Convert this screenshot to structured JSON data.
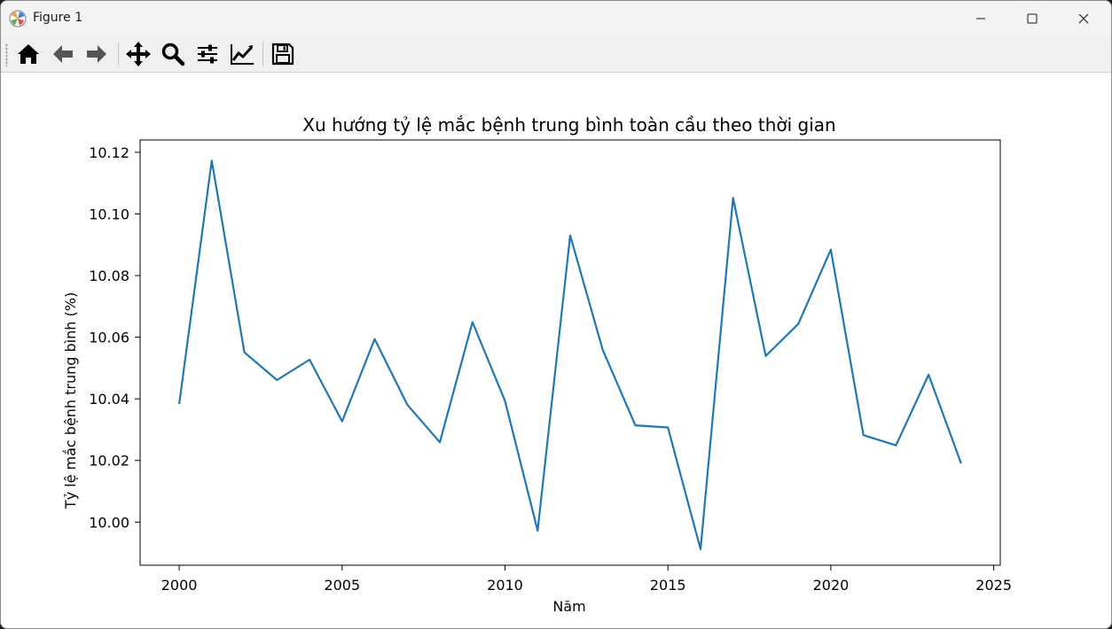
{
  "window": {
    "title": "Figure 1",
    "app_icon": "matplotlib-icon",
    "controls": [
      "minimize-icon",
      "maximize-icon",
      "close-icon"
    ]
  },
  "toolbar": {
    "buttons": [
      {
        "name": "home",
        "icon": "home-icon"
      },
      {
        "name": "back",
        "icon": "arrow-left-icon"
      },
      {
        "name": "forward",
        "icon": "arrow-right-icon"
      },
      {
        "name": "pan",
        "icon": "move-icon"
      },
      {
        "name": "zoom",
        "icon": "magnifier-icon"
      },
      {
        "name": "configure-subplots",
        "icon": "sliders-icon"
      },
      {
        "name": "edit-axis",
        "icon": "line-chart-icon"
      },
      {
        "name": "save",
        "icon": "floppy-disk-icon"
      }
    ]
  },
  "chart_data": {
    "type": "line",
    "title": "Xu hướng tỷ lệ mắc bệnh trung bình toàn cầu theo thời gian",
    "xlabel": "Năm",
    "ylabel": "Tỷ lệ mắc bệnh trung bình (%)",
    "xlim": [
      1998.8,
      2025.2
    ],
    "ylim": [
      9.986,
      10.124
    ],
    "xticks": [
      2000,
      2005,
      2010,
      2015,
      2020,
      2025
    ],
    "yticks": [
      10.0,
      10.02,
      10.04,
      10.06,
      10.08,
      10.1,
      10.12
    ],
    "ytick_labels": [
      "10.00",
      "10.02",
      "10.04",
      "10.06",
      "10.08",
      "10.10",
      "10.12"
    ],
    "grid": false,
    "line_color": "#1f77b4",
    "series": [
      {
        "x": [
          2000,
          2001,
          2002,
          2003,
          2004,
          2005,
          2006,
          2007,
          2008,
          2009,
          2010,
          2011,
          2012,
          2013,
          2014,
          2015,
          2016,
          2017,
          2018,
          2019,
          2020,
          2021,
          2022,
          2023,
          2024
        ],
        "values": [
          10.0383,
          10.1173,
          10.0551,
          10.0461,
          10.0527,
          10.0327,
          10.0594,
          10.0381,
          10.0259,
          10.0649,
          10.0393,
          9.9972,
          10.093,
          10.0559,
          10.0314,
          10.0307,
          9.9912,
          10.1052,
          10.0539,
          10.0643,
          10.0884,
          10.0282,
          10.0249,
          10.0478,
          10.019
        ]
      }
    ]
  }
}
